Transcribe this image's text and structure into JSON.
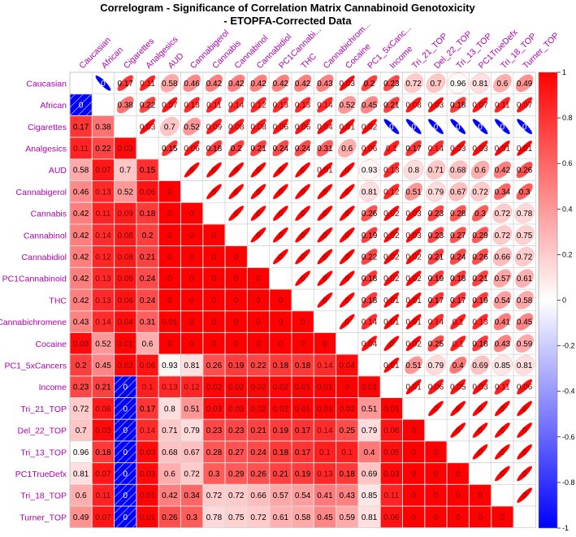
{
  "chart_data": {
    "type": "heatmap",
    "title_lines": [
      "Correlogram - Significance of Correlation Matrix Cannabinoid Genotoxicity",
      "- ETOPFA-Corrected Data"
    ],
    "variables": [
      "Caucasian",
      "African",
      "Cigarettes",
      "Analgesics",
      "AUD",
      "Cannabigerol",
      "Cannabis",
      "Cannabinol",
      "Cannabidiol",
      "PC1Cannabinoid",
      "THC",
      "Cannabichromene",
      "Cocaine",
      "PC1_5xCancers",
      "Income",
      "Tri_21_TOP",
      "Del_22_TOP",
      "Tri_13_TOP",
      "PC1TrueDefx",
      "Tri_18_TOP",
      "Turner_TOP"
    ],
    "column_labels": [
      "Caucasian",
      "African",
      "Cigarettes",
      "Analgesics",
      "AUD",
      "Cannabigerol",
      "Cannabis",
      "Cannabinol",
      "Cannabidiol",
      "PC1Cannabi...",
      "THC",
      "Cannabichrom...",
      "Cocaine",
      "PC1_5xCanc...",
      "Income",
      "Tri_21_TOP",
      "Del_22_TOP",
      "Tri_13_TOP",
      "PC1TrueDefx",
      "Tri_18_TOP",
      "Turner_TOP"
    ],
    "p_values": [
      [
        null,
        0,
        0.17,
        0.11,
        0.58,
        0.46,
        0.42,
        0.42,
        0.42,
        0.42,
        0.42,
        0.43,
        0.03,
        0.2,
        0.23,
        0.72,
        0.7,
        0.96,
        0.81,
        0.6,
        0.49
      ],
      [
        0,
        null,
        0.38,
        0.22,
        0.07,
        0.13,
        0.11,
        0.14,
        0.12,
        0.13,
        0.13,
        0.14,
        0.52,
        0.45,
        0.21,
        0.08,
        0.03,
        0.18,
        0.07,
        0.11,
        0.07
      ],
      [
        0.17,
        0.38,
        null,
        0.03,
        0.7,
        0.52,
        0.09,
        0.08,
        0.08,
        0.06,
        0.06,
        0.04,
        0.01,
        0.02,
        0,
        0,
        0,
        0,
        0,
        0,
        0
      ],
      [
        0.11,
        0.22,
        0.03,
        null,
        0.15,
        0.06,
        0.18,
        0.2,
        0.21,
        0.24,
        0.24,
        0.31,
        0.6,
        0.06,
        0.1,
        0.17,
        0.14,
        0.03,
        0.03,
        0.01,
        0.01
      ],
      [
        0.58,
        0.07,
        0.7,
        0.15,
        null,
        0,
        0,
        0,
        0,
        0,
        0,
        0.01,
        0,
        0.93,
        0.13,
        0.8,
        0.71,
        0.68,
        0.6,
        0.42,
        0.26
      ],
      [
        0.46,
        0.13,
        0.52,
        0.06,
        0,
        null,
        0,
        0,
        0,
        0,
        0,
        0,
        0,
        0.81,
        0.12,
        0.51,
        0.79,
        0.67,
        0.72,
        0.34,
        0.3
      ],
      [
        0.42,
        0.11,
        0.09,
        0.18,
        0,
        0,
        null,
        0,
        0,
        0,
        0,
        0,
        0,
        0.26,
        0.02,
        0.03,
        0.23,
        0.28,
        0.3,
        0.72,
        0.78
      ],
      [
        0.42,
        0.14,
        0.08,
        0.2,
        0,
        0,
        0,
        null,
        0,
        0,
        0,
        0,
        0,
        0.19,
        0.02,
        0.03,
        0.23,
        0.27,
        0.29,
        0.72,
        0.75
      ],
      [
        0.42,
        0.12,
        0.08,
        0.21,
        0,
        0,
        0,
        0,
        null,
        0,
        0,
        0,
        0,
        0.22,
        0.02,
        0.02,
        0.21,
        0.24,
        0.26,
        0.66,
        0.72
      ],
      [
        0.42,
        0.13,
        0.06,
        0.24,
        0,
        0,
        0,
        0,
        0,
        null,
        0,
        0,
        0,
        0.18,
        0.02,
        0.02,
        0.19,
        0.18,
        0.21,
        0.57,
        0.61
      ],
      [
        0.42,
        0.13,
        0.06,
        0.24,
        0,
        0,
        0,
        0,
        0,
        0,
        null,
        0,
        0,
        0.18,
        0.01,
        0.01,
        0.17,
        0.17,
        0.19,
        0.54,
        0.58
      ],
      [
        0.43,
        0.14,
        0.04,
        0.31,
        0.01,
        0,
        0,
        0,
        0,
        0,
        0,
        null,
        0,
        0.14,
        0.01,
        0.01,
        0.14,
        0.1,
        0.13,
        0.41,
        0.45
      ],
      [
        0.03,
        0.52,
        0.01,
        0.6,
        0,
        0,
        0,
        0,
        0,
        0,
        0,
        0,
        null,
        0.04,
        0,
        0.02,
        0.25,
        0.1,
        0.18,
        0.43,
        0.59
      ],
      [
        0.2,
        0.45,
        0.02,
        0.06,
        0.93,
        0.81,
        0.26,
        0.19,
        0.22,
        0.18,
        0.18,
        0.14,
        0.04,
        null,
        0.01,
        0.51,
        0.79,
        0.4,
        0.69,
        0.85,
        0.81
      ],
      [
        0.23,
        0.21,
        0,
        0.1,
        0.13,
        0.12,
        0.02,
        0.02,
        0.02,
        0.02,
        0.01,
        0.01,
        0,
        0.01,
        null,
        0.01,
        0.06,
        0.05,
        0.03,
        0.11,
        0.06
      ],
      [
        0.72,
        0.08,
        0,
        0.17,
        0.8,
        0.51,
        0.03,
        0.03,
        0.02,
        0.02,
        0.01,
        0.01,
        0.02,
        0.51,
        0.01,
        null,
        0,
        0,
        0,
        0,
        0
      ],
      [
        0.7,
        0.03,
        0,
        0.14,
        0.71,
        0.79,
        0.23,
        0.23,
        0.21,
        0.19,
        0.17,
        0.14,
        0.25,
        0.79,
        0.06,
        0,
        null,
        0,
        0,
        0,
        0
      ],
      [
        0.96,
        0.18,
        0,
        0.03,
        0.68,
        0.67,
        0.28,
        0.27,
        0.24,
        0.18,
        0.17,
        0.1,
        0.1,
        0.4,
        0.05,
        0,
        0,
        null,
        0,
        0,
        0
      ],
      [
        0.81,
        0.07,
        0,
        0.03,
        0.6,
        0.72,
        0.3,
        0.29,
        0.26,
        0.21,
        0.19,
        0.13,
        0.18,
        0.69,
        0.03,
        0,
        0,
        0,
        null,
        0,
        0
      ],
      [
        0.6,
        0.11,
        0,
        0.01,
        0.42,
        0.34,
        0.72,
        0.72,
        0.66,
        0.57,
        0.54,
        0.41,
        0.43,
        0.85,
        0.11,
        0,
        0,
        0,
        0,
        null,
        0
      ],
      [
        0.49,
        0.07,
        0,
        0.01,
        0.26,
        0.3,
        0.78,
        0.75,
        0.72,
        0.61,
        0.58,
        0.45,
        0.59,
        0.81,
        0.06,
        0,
        0,
        0,
        0,
        0,
        null
      ]
    ],
    "negative_cells": [
      [
        0,
        1
      ],
      [
        2,
        14
      ],
      [
        2,
        15
      ],
      [
        2,
        16
      ],
      [
        2,
        17
      ],
      [
        2,
        18
      ],
      [
        2,
        19
      ],
      [
        2,
        20
      ]
    ],
    "legend": {
      "position": "right",
      "ticks": [
        "1",
        "0.8",
        "0.6",
        "0.4",
        "0.2",
        "0",
        "-0.2",
        "-0.4",
        "-0.6",
        "-0.8",
        "-1"
      ],
      "range": [
        -1,
        1
      ]
    },
    "colors": {
      "positive": "#ff0000",
      "negative": "#0000ff",
      "label": "#b000b0",
      "grid": "#bbbbbb"
    },
    "lower_triangle": "shaded squares with p-values",
    "upper_triangle": "ellipses with p-values"
  }
}
